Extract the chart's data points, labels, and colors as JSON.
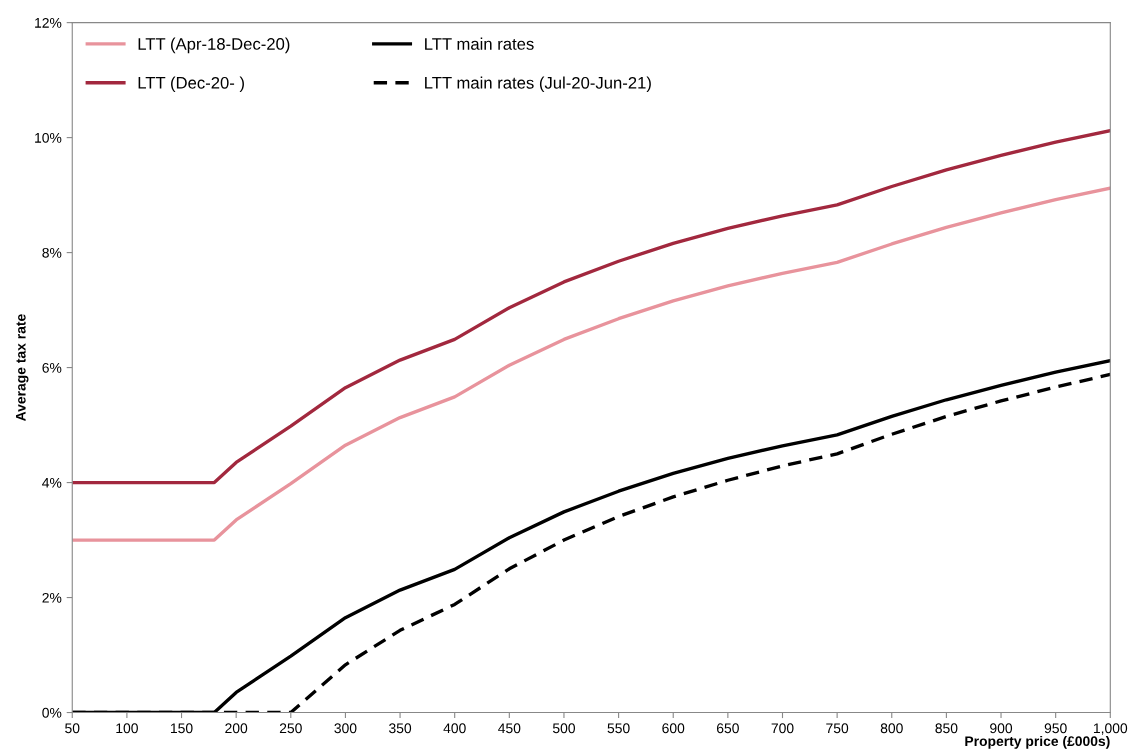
{
  "chart_data": {
    "type": "line",
    "xlabel": "Property price (£000s)",
    "ylabel": "Average tax rate",
    "x": [
      50,
      100,
      150,
      180,
      200,
      250,
      300,
      350,
      400,
      450,
      500,
      550,
      600,
      650,
      700,
      750,
      800,
      850,
      900,
      950,
      1000
    ],
    "series": [
      {
        "name": "LTT (Apr-18-Dec-20)",
        "color": "#e8939c",
        "line_style": "solid",
        "values": [
          3,
          3,
          3,
          3,
          3.35,
          3.98,
          4.65,
          5.13,
          5.49,
          6.04,
          6.49,
          6.85,
          7.16,
          7.42,
          7.64,
          7.83,
          8.15,
          8.44,
          8.69,
          8.92,
          9.12
        ]
      },
      {
        "name": "LTT (Dec-20- )",
        "color": "#a2283e",
        "line_style": "solid",
        "values": [
          4,
          4,
          4,
          4,
          4.35,
          4.98,
          5.65,
          6.13,
          6.49,
          7.04,
          7.49,
          7.85,
          8.16,
          8.42,
          8.64,
          8.83,
          9.15,
          9.44,
          9.69,
          9.92,
          10.12
        ]
      },
      {
        "name": "LTT main rates",
        "color": "#000000",
        "line_style": "solid",
        "values": [
          0,
          0,
          0,
          0,
          0.35,
          0.98,
          1.65,
          2.13,
          2.49,
          3.04,
          3.49,
          3.85,
          4.16,
          4.42,
          4.64,
          4.83,
          5.15,
          5.44,
          5.69,
          5.92,
          6.12
        ]
      },
      {
        "name": "LTT main rates (Jul-20-Jun-21)",
        "color": "#000000",
        "line_style": "dashed",
        "values": [
          0,
          0,
          0,
          0,
          0,
          0,
          0.83,
          1.43,
          1.88,
          2.5,
          3.0,
          3.41,
          3.75,
          4.04,
          4.29,
          4.5,
          4.84,
          5.15,
          5.42,
          5.66,
          5.88
        ]
      }
    ],
    "xlim": [
      50,
      1000
    ],
    "ylim": [
      0,
      12
    ],
    "xticks": [
      50,
      100,
      150,
      200,
      250,
      300,
      350,
      400,
      450,
      500,
      550,
      600,
      650,
      700,
      750,
      800,
      850,
      900,
      950,
      {
        "value": 1000,
        "label": "1,000"
      }
    ],
    "yticks": [
      {
        "value": 0,
        "label": "0%"
      },
      {
        "value": 2,
        "label": "2%"
      },
      {
        "value": 4,
        "label": "4%"
      },
      {
        "value": 6,
        "label": "6%"
      },
      {
        "value": 8,
        "label": "8%"
      },
      {
        "value": 10,
        "label": "10%"
      },
      {
        "value": 12,
        "label": "12%"
      }
    ],
    "grid": false,
    "legend": "top left",
    "marker": "none"
  }
}
